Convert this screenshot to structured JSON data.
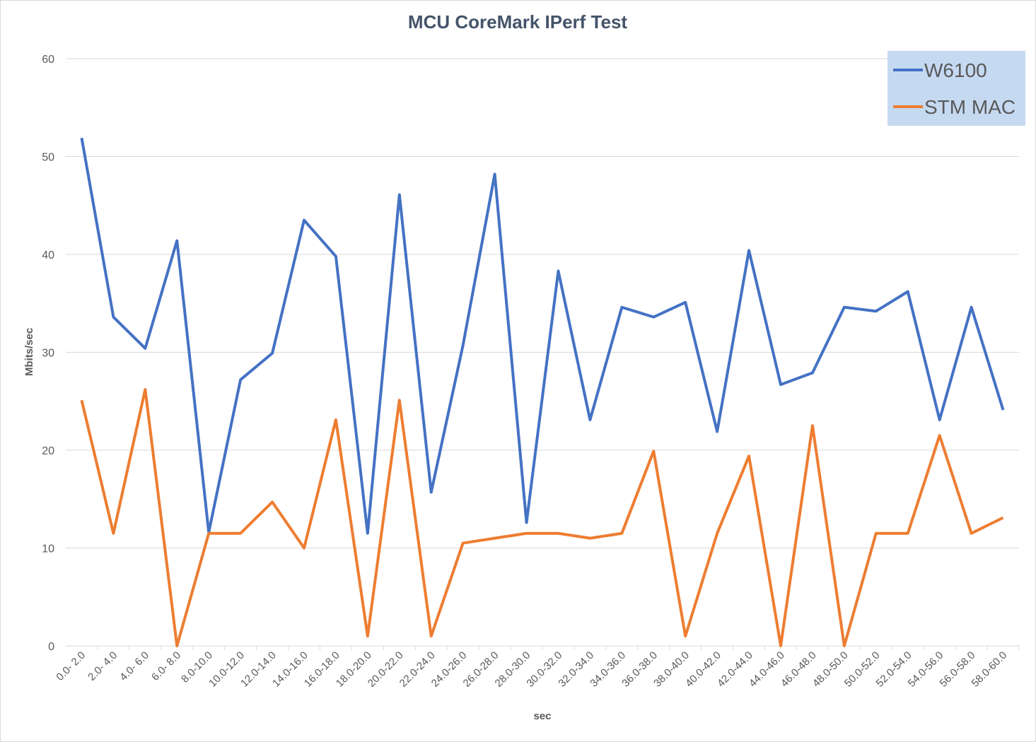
{
  "chart_data": {
    "type": "line",
    "title": "MCU CoreMark  IPerf Test",
    "x_label": "sec",
    "y_label": "Mbits/sec",
    "categories": [
      "0.0- 2.0",
      "2.0- 4.0",
      "4.0- 6.0",
      "6.0- 8.0",
      "8.0-10.0",
      "10.0-12.0",
      "12.0-14.0",
      "14.0-16.0",
      "16.0-18.0",
      "18.0-20.0",
      "20.0-22.0",
      "22.0-24.0",
      "24.0-26.0",
      "26.0-28.0",
      "28.0-30.0",
      "30.0-32.0",
      "32.0-34.0",
      "34.0-36.0",
      "36.0-38.0",
      "38.0-40.0",
      "40.0-42.0",
      "42.0-44.0",
      "44.0-46.0",
      "46.0-48.0",
      "48.0-50.0",
      "50.0-52.0",
      "52.0-54.0",
      "54.0-56.0",
      "56.0-58.0",
      "58.0-60.0"
    ],
    "series": [
      {
        "name": "W6100",
        "color": "#4472c4",
        "values": [
          51.9,
          33.6,
          30.4,
          41.4,
          11.6,
          27.2,
          29.9,
          43.5,
          39.8,
          11.5,
          46.1,
          15.7,
          30.7,
          48.2,
          12.6,
          38.3,
          23.1,
          34.6,
          33.6,
          35.1,
          21.9,
          40.4,
          26.7,
          27.9,
          34.6,
          34.2,
          36.2,
          23.1,
          34.6,
          24.1
        ]
      },
      {
        "name": "STM MAC",
        "color": "#ed7d31",
        "values": [
          25.1,
          11.5,
          26.2,
          0,
          11.5,
          11.5,
          14.7,
          10,
          23.1,
          1,
          25.1,
          1,
          10.5,
          11,
          11.5,
          11.5,
          11,
          11.5,
          19.9,
          1,
          11.5,
          19.4,
          0,
          22.5,
          0,
          11.5,
          11.5,
          21.5,
          11.5,
          13.1
        ]
      }
    ],
    "ylim": [
      0,
      60
    ],
    "yticks": [
      0,
      10,
      20,
      30,
      40,
      50,
      60
    ],
    "grid": true,
    "legend": "upper right"
  }
}
